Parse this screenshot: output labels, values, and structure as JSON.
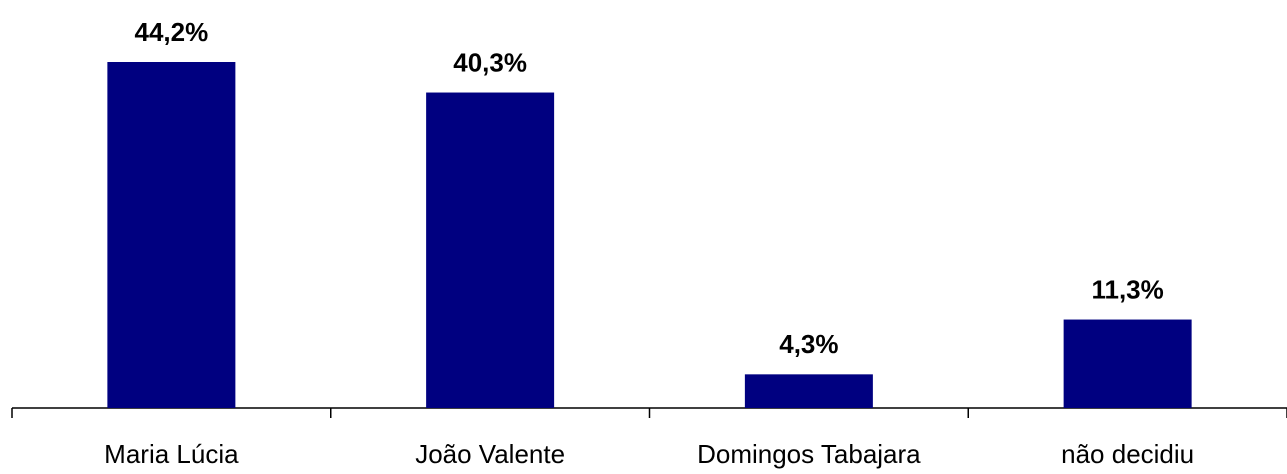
{
  "chart_data": {
    "type": "bar",
    "categories": [
      "Maria Lúcia",
      "João Valente",
      "Domingos Tabajara",
      "não decidiu"
    ],
    "values": [
      44.2,
      40.3,
      4.3,
      11.3
    ],
    "value_labels": [
      "44,2%",
      "40,3%",
      "4,3%",
      "11,3%"
    ],
    "color": "#000080"
  }
}
